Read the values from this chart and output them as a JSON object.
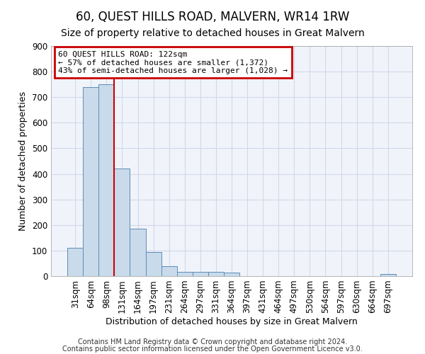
{
  "title": "60, QUEST HILLS ROAD, MALVERN, WR14 1RW",
  "subtitle": "Size of property relative to detached houses in Great Malvern",
  "xlabel": "Distribution of detached houses by size in Great Malvern",
  "ylabel": "Number of detached properties",
  "bar_labels": [
    "31sqm",
    "64sqm",
    "98sqm",
    "131sqm",
    "164sqm",
    "197sqm",
    "231sqm",
    "264sqm",
    "297sqm",
    "331sqm",
    "364sqm",
    "397sqm",
    "431sqm",
    "464sqm",
    "497sqm",
    "530sqm",
    "564sqm",
    "597sqm",
    "630sqm",
    "664sqm",
    "697sqm"
  ],
  "bar_values": [
    111,
    740,
    750,
    420,
    185,
    95,
    40,
    18,
    18,
    18,
    14,
    0,
    0,
    0,
    0,
    0,
    0,
    0,
    0,
    0,
    8
  ],
  "bar_color": "#c9daea",
  "bar_edge_color": "#5b8db8",
  "red_line_x": 2.5,
  "annotation_text": "60 QUEST HILLS ROAD: 122sqm\n← 57% of detached houses are smaller (1,372)\n43% of semi-detached houses are larger (1,028) →",
  "annotation_box_color": "#ffffff",
  "annotation_box_edge": "#cc0000",
  "red_line_color": "#cc0000",
  "ylim": [
    0,
    900
  ],
  "yticks": [
    0,
    100,
    200,
    300,
    400,
    500,
    600,
    700,
    800,
    900
  ],
  "footer1": "Contains HM Land Registry data © Crown copyright and database right 2024.",
  "footer2": "Contains public sector information licensed under the Open Government Licence v3.0.",
  "title_fontsize": 12,
  "subtitle_fontsize": 10,
  "tick_fontsize": 8.5,
  "ylabel_fontsize": 9,
  "xlabel_fontsize": 9,
  "annot_fontsize": 8
}
